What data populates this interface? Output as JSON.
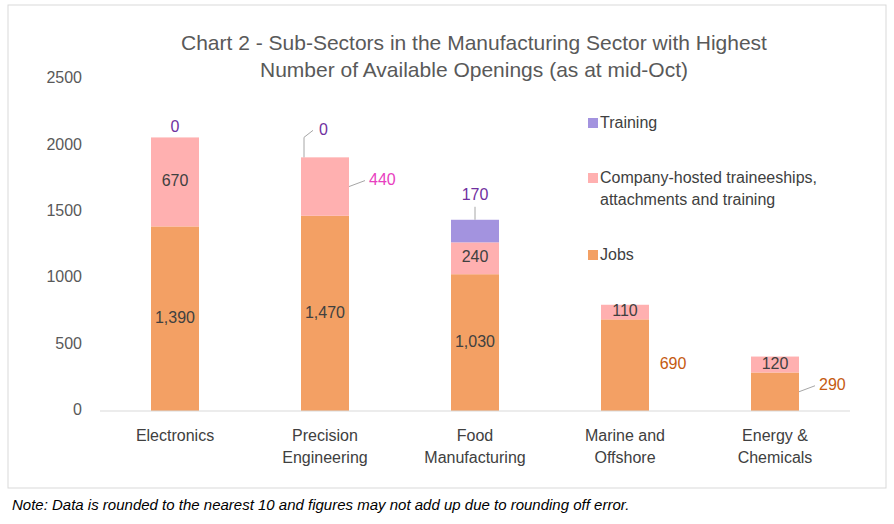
{
  "chart_data": {
    "type": "bar",
    "title": "Chart 2 - Sub-Sectors in the Manufacturing Sector with Highest Number of Available Openings (as at mid-Oct)",
    "note": "Note: Data is rounded to the nearest 10 and figures may not add up due to rounding off error.",
    "categories": [
      "Electronics",
      "Precision Engineering",
      "Food Manufacturing",
      "Marine and Offshore",
      "Energy & Chemicals"
    ],
    "series": [
      {
        "name": "Jobs",
        "color": "#F3A064",
        "values": [
          1390,
          1470,
          1030,
          690,
          290
        ],
        "value_labels": [
          "1,390",
          "1,470",
          "1,030",
          "690",
          "290"
        ]
      },
      {
        "name": "Company-hosted traineeships, attachments and training",
        "color": "#FFB0B0",
        "values": [
          670,
          440,
          240,
          110,
          120
        ]
      },
      {
        "name": "Training",
        "color": "#A393DF",
        "values": [
          0,
          0,
          170,
          null,
          null
        ]
      }
    ],
    "ylim": [
      0,
      2500
    ],
    "yticks": [
      0,
      500,
      1000,
      1500,
      2000,
      2500
    ],
    "stacked": true,
    "data_labels": true,
    "grid": false,
    "legend": "right"
  }
}
